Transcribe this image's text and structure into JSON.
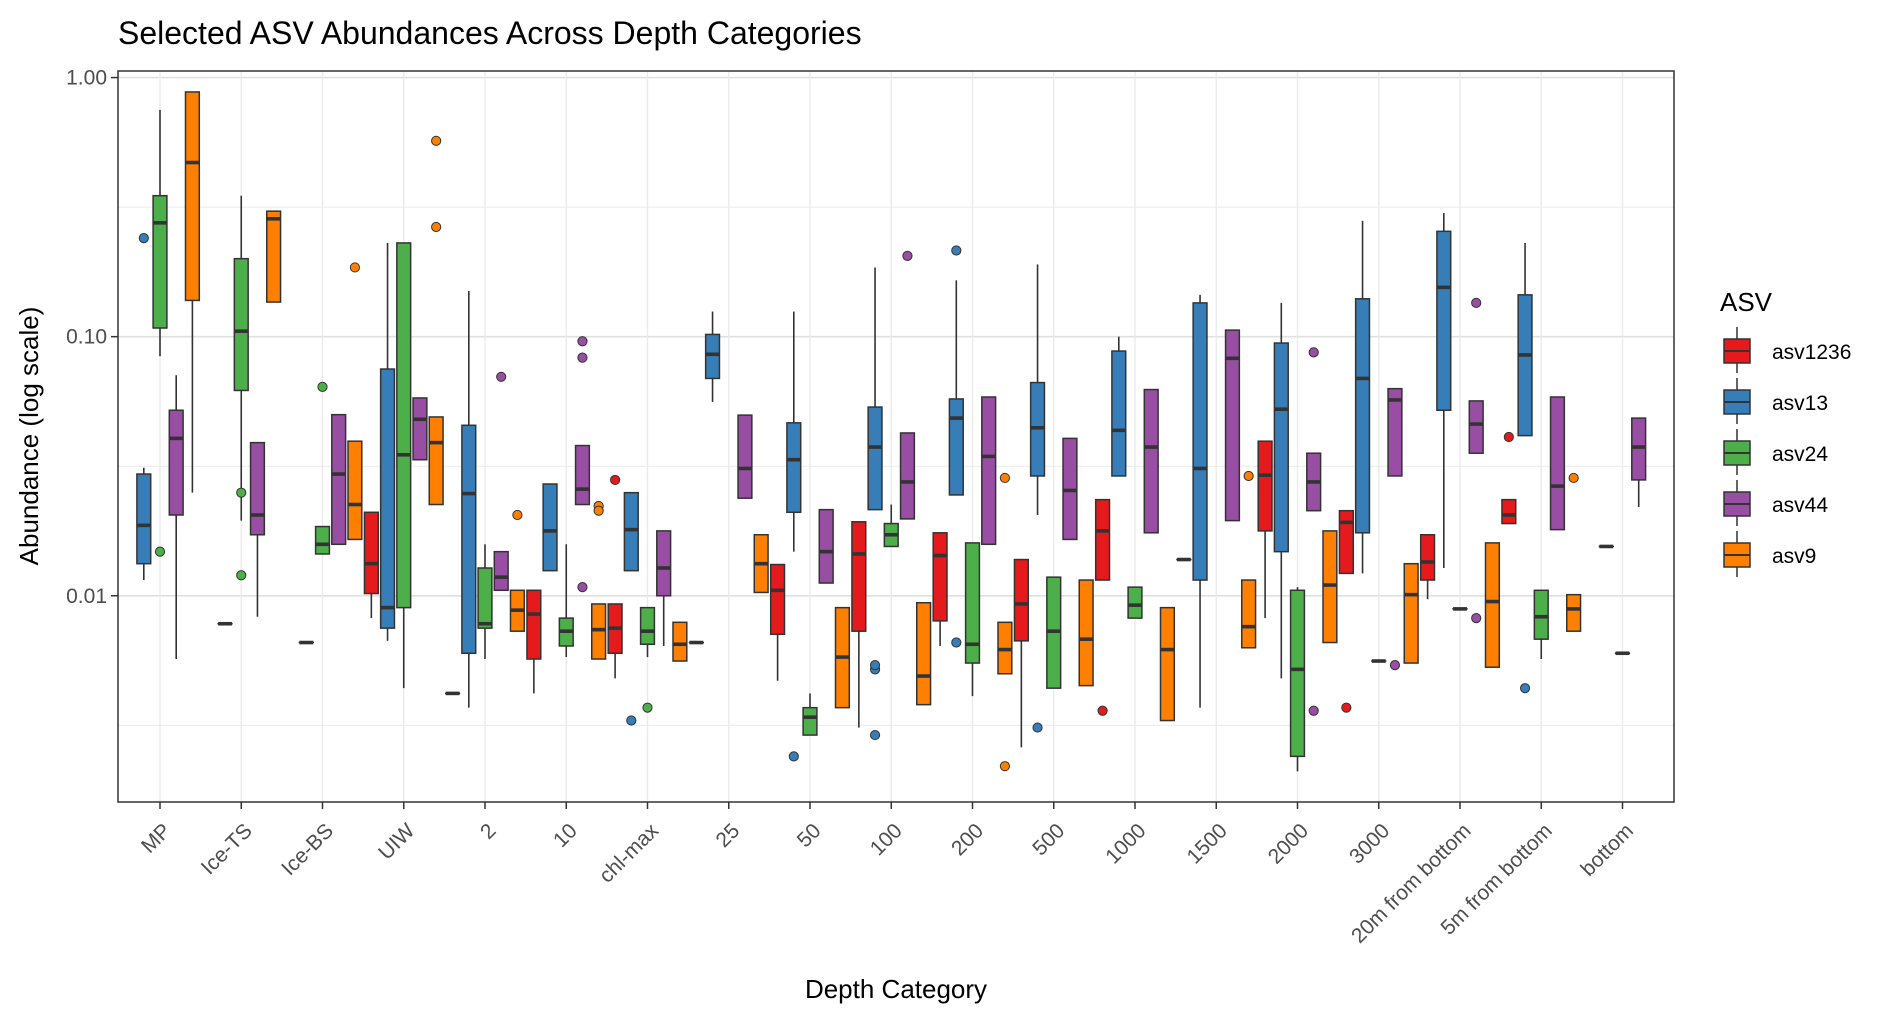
{
  "chart_data": {
    "type": "box",
    "title": "Selected ASV Abundances Across Depth Categories",
    "xlabel": "Depth Category",
    "ylabel": "Abundance (log scale)",
    "yscale": "log10",
    "ylim": [
      0.0016,
      1.06
    ],
    "yticks": [
      {
        "value": 1.0,
        "label": "1.00"
      },
      {
        "value": 0.1,
        "label": "0.10"
      },
      {
        "value": 0.01,
        "label": "0.01"
      }
    ],
    "grid": true,
    "legend_position": "right",
    "legend_title": "ASV",
    "categories": [
      "MP",
      "Ice-TS",
      "Ice-BS",
      "UIW",
      "2",
      "10",
      "chl-max",
      "25",
      "50",
      "100",
      "200",
      "500",
      "1000",
      "1500",
      "2000",
      "3000",
      "20m from bottom",
      "5m from bottom",
      "bottom"
    ],
    "series": [
      {
        "name": "asv1236",
        "color": "#E41A1C",
        "boxes": [
          null,
          null,
          null,
          {
            "q1": 0.0102,
            "median": 0.0133,
            "q3": 0.021,
            "lo": 0.0082,
            "hi": 0.021,
            "outliers": []
          },
          {
            "q1": 0.0042,
            "median": 0.0042,
            "q3": 0.0042,
            "lo": 0.0042,
            "hi": 0.0042,
            "outliers": []
          },
          {
            "q1": 0.0057,
            "median": 0.0085,
            "q3": 0.0105,
            "lo": 0.0042,
            "hi": 0.0105,
            "outliers": []
          },
          {
            "q1": 0.006,
            "median": 0.0075,
            "q3": 0.0093,
            "lo": 0.0048,
            "hi": 0.0093,
            "outliers": [
              0.028
            ]
          },
          {
            "q1": 0.0066,
            "median": 0.0066,
            "q3": 0.0066,
            "lo": 0.0066,
            "hi": 0.0066,
            "outliers": []
          },
          {
            "q1": 0.0071,
            "median": 0.0105,
            "q3": 0.0132,
            "lo": 0.0047,
            "hi": 0.0132,
            "outliers": []
          },
          {
            "q1": 0.0073,
            "median": 0.0145,
            "q3": 0.0193,
            "lo": 0.0031,
            "hi": 0.0193,
            "outliers": []
          },
          {
            "q1": 0.008,
            "median": 0.0143,
            "q3": 0.0175,
            "lo": 0.0064,
            "hi": 0.0175,
            "outliers": []
          },
          {
            "q1": 0.0067,
            "median": 0.0093,
            "q3": 0.0138,
            "lo": 0.0026,
            "hi": 0.0138,
            "outliers": []
          },
          {
            "q1": 0.0115,
            "median": 0.0178,
            "q3": 0.0235,
            "lo": 0.0115,
            "hi": 0.0235,
            "outliers": [
              0.0036
            ]
          },
          {
            "q1": 0.0138,
            "median": 0.0138,
            "q3": 0.0138,
            "lo": 0.0138,
            "hi": 0.0138,
            "outliers": []
          },
          {
            "q1": 0.0178,
            "median": 0.0292,
            "q3": 0.0395,
            "lo": 0.0082,
            "hi": 0.0395,
            "outliers": []
          },
          {
            "q1": 0.0122,
            "median": 0.0192,
            "q3": 0.0213,
            "lo": 0.0122,
            "hi": 0.0213,
            "outliers": [
              0.0037
            ]
          },
          {
            "q1": 0.0115,
            "median": 0.0135,
            "q3": 0.0172,
            "lo": 0.0097,
            "hi": 0.0172,
            "outliers": []
          },
          {
            "q1": 0.019,
            "median": 0.0205,
            "q3": 0.0235,
            "lo": 0.019,
            "hi": 0.0235,
            "outliers": [
              0.041
            ]
          },
          null
        ]
      },
      {
        "name": "asv13",
        "color": "#377EB8",
        "boxes": [
          {
            "q1": 0.0133,
            "median": 0.0187,
            "q3": 0.0295,
            "lo": 0.0115,
            "hi": 0.0312,
            "outliers": [
              0.24
            ]
          },
          {
            "q1": 0.0078,
            "median": 0.0078,
            "q3": 0.0078,
            "lo": 0.0078,
            "hi": 0.0078,
            "outliers": []
          },
          {
            "q1": 0.0066,
            "median": 0.0066,
            "q3": 0.0066,
            "lo": 0.0066,
            "hi": 0.0066,
            "outliers": []
          },
          {
            "q1": 0.0075,
            "median": 0.009,
            "q3": 0.075,
            "lo": 0.0067,
            "hi": 0.23,
            "outliers": []
          },
          {
            "q1": 0.006,
            "median": 0.0248,
            "q3": 0.0455,
            "lo": 0.0037,
            "hi": 0.15,
            "outliers": []
          },
          {
            "q1": 0.0125,
            "median": 0.0178,
            "q3": 0.027,
            "lo": 0.0125,
            "hi": 0.027,
            "outliers": []
          },
          {
            "q1": 0.0125,
            "median": 0.018,
            "q3": 0.025,
            "lo": 0.0125,
            "hi": 0.025,
            "outliers": [
              0.0033
            ]
          },
          {
            "q1": 0.069,
            "median": 0.0855,
            "q3": 0.102,
            "lo": 0.056,
            "hi": 0.125,
            "outliers": []
          },
          {
            "q1": 0.021,
            "median": 0.0335,
            "q3": 0.0465,
            "lo": 0.0148,
            "hi": 0.125,
            "outliers": [
              0.0024
            ]
          },
          {
            "q1": 0.0215,
            "median": 0.0375,
            "q3": 0.0535,
            "lo": 0.0215,
            "hi": 0.185,
            "outliers": [
              0.0052,
              0.0054,
              0.0029
            ]
          },
          {
            "q1": 0.0245,
            "median": 0.0485,
            "q3": 0.0575,
            "lo": 0.0245,
            "hi": 0.165,
            "outliers": [
              0.215,
              0.0066
            ]
          },
          {
            "q1": 0.029,
            "median": 0.0445,
            "q3": 0.0665,
            "lo": 0.0205,
            "hi": 0.19,
            "outliers": [
              0.0031
            ]
          },
          {
            "q1": 0.029,
            "median": 0.0435,
            "q3": 0.088,
            "lo": 0.029,
            "hi": 0.1,
            "outliers": []
          },
          {
            "q1": 0.0115,
            "median": 0.031,
            "q3": 0.135,
            "lo": 0.0037,
            "hi": 0.145,
            "outliers": []
          },
          {
            "q1": 0.0148,
            "median": 0.0525,
            "q3": 0.0945,
            "lo": 0.0048,
            "hi": 0.135,
            "outliers": []
          },
          {
            "q1": 0.0175,
            "median": 0.069,
            "q3": 0.14,
            "lo": 0.0122,
            "hi": 0.28,
            "outliers": []
          },
          {
            "q1": 0.052,
            "median": 0.155,
            "q3": 0.255,
            "lo": 0.0128,
            "hi": 0.3,
            "outliers": []
          },
          {
            "q1": 0.0415,
            "median": 0.085,
            "q3": 0.145,
            "lo": 0.0415,
            "hi": 0.23,
            "outliers": [
              0.0044
            ]
          },
          {
            "q1": 0.0155,
            "median": 0.0155,
            "q3": 0.0155,
            "lo": 0.0155,
            "hi": 0.0155,
            "outliers": []
          }
        ]
      },
      {
        "name": "asv24",
        "color": "#4DAF4A",
        "boxes": [
          {
            "q1": 0.108,
            "median": 0.275,
            "q3": 0.35,
            "lo": 0.084,
            "hi": 0.75,
            "outliers": [
              0.0148
            ]
          },
          {
            "q1": 0.062,
            "median": 0.105,
            "q3": 0.2,
            "lo": 0.0195,
            "hi": 0.35,
            "outliers": [
              0.025,
              0.012
            ]
          },
          {
            "q1": 0.0145,
            "median": 0.0158,
            "q3": 0.0185,
            "lo": 0.0145,
            "hi": 0.0185,
            "outliers": [
              0.064
            ]
          },
          {
            "q1": 0.009,
            "median": 0.035,
            "q3": 0.23,
            "lo": 0.0044,
            "hi": 0.23,
            "outliers": []
          },
          {
            "q1": 0.0075,
            "median": 0.0078,
            "q3": 0.0128,
            "lo": 0.0057,
            "hi": 0.0158,
            "outliers": []
          },
          {
            "q1": 0.0064,
            "median": 0.0073,
            "q3": 0.0082,
            "lo": 0.0058,
            "hi": 0.0158,
            "outliers": []
          },
          {
            "q1": 0.0065,
            "median": 0.0073,
            "q3": 0.009,
            "lo": 0.0058,
            "hi": 0.009,
            "outliers": [
              0.0037
            ]
          },
          null,
          {
            "q1": 0.0029,
            "median": 0.0034,
            "q3": 0.0037,
            "lo": 0.0029,
            "hi": 0.0042,
            "outliers": []
          },
          {
            "q1": 0.0155,
            "median": 0.0172,
            "q3": 0.019,
            "lo": 0.0155,
            "hi": 0.0225,
            "outliers": []
          },
          {
            "q1": 0.0055,
            "median": 0.0065,
            "q3": 0.016,
            "lo": 0.0041,
            "hi": 0.016,
            "outliers": []
          },
          {
            "q1": 0.0044,
            "median": 0.0073,
            "q3": 0.0118,
            "lo": 0.0044,
            "hi": 0.0118,
            "outliers": []
          },
          {
            "q1": 0.0082,
            "median": 0.0092,
            "q3": 0.0108,
            "lo": 0.0082,
            "hi": 0.0108,
            "outliers": []
          },
          null,
          {
            "q1": 0.0024,
            "median": 0.0052,
            "q3": 0.0105,
            "lo": 0.0021,
            "hi": 0.0108,
            "outliers": []
          },
          {
            "q1": 0.0056,
            "median": 0.0056,
            "q3": 0.0056,
            "lo": 0.0056,
            "hi": 0.0056,
            "outliers": []
          },
          {
            "q1": 0.0089,
            "median": 0.0089,
            "q3": 0.0089,
            "lo": 0.0089,
            "hi": 0.0089,
            "outliers": []
          },
          {
            "q1": 0.0068,
            "median": 0.0083,
            "q3": 0.0105,
            "lo": 0.0057,
            "hi": 0.0105,
            "outliers": []
          },
          {
            "q1": 0.006,
            "median": 0.006,
            "q3": 0.006,
            "lo": 0.006,
            "hi": 0.006,
            "outliers": []
          }
        ]
      },
      {
        "name": "asv44",
        "color": "#984EA3",
        "boxes": [
          {
            "q1": 0.0205,
            "median": 0.0405,
            "q3": 0.052,
            "lo": 0.0057,
            "hi": 0.071,
            "outliers": []
          },
          {
            "q1": 0.0172,
            "median": 0.0205,
            "q3": 0.039,
            "lo": 0.0083,
            "hi": 0.039,
            "outliers": []
          },
          {
            "q1": 0.0158,
            "median": 0.0295,
            "q3": 0.05,
            "lo": 0.0158,
            "hi": 0.05,
            "outliers": []
          },
          {
            "q1": 0.0335,
            "median": 0.048,
            "q3": 0.058,
            "lo": 0.0335,
            "hi": 0.058,
            "outliers": []
          },
          {
            "q1": 0.0105,
            "median": 0.0118,
            "q3": 0.0148,
            "lo": 0.0105,
            "hi": 0.0148,
            "outliers": [
              0.07
            ]
          },
          {
            "q1": 0.0225,
            "median": 0.0258,
            "q3": 0.038,
            "lo": 0.0225,
            "hi": 0.038,
            "outliers": [
              0.096,
              0.083,
              0.0108
            ]
          },
          {
            "q1": 0.01,
            "median": 0.0128,
            "q3": 0.0178,
            "lo": 0.0064,
            "hi": 0.0178,
            "outliers": []
          },
          {
            "q1": 0.0238,
            "median": 0.031,
            "q3": 0.0498,
            "lo": 0.0238,
            "hi": 0.0498,
            "outliers": []
          },
          {
            "q1": 0.0112,
            "median": 0.0148,
            "q3": 0.0215,
            "lo": 0.0112,
            "hi": 0.0215,
            "outliers": []
          },
          {
            "q1": 0.0198,
            "median": 0.0275,
            "q3": 0.0425,
            "lo": 0.0198,
            "hi": 0.0425,
            "outliers": [
              0.205
            ]
          },
          {
            "q1": 0.0158,
            "median": 0.0345,
            "q3": 0.0585,
            "lo": 0.0158,
            "hi": 0.0585,
            "outliers": []
          },
          {
            "q1": 0.0165,
            "median": 0.0255,
            "q3": 0.0405,
            "lo": 0.0165,
            "hi": 0.0405,
            "outliers": []
          },
          {
            "q1": 0.0175,
            "median": 0.0375,
            "q3": 0.0625,
            "lo": 0.0175,
            "hi": 0.0625,
            "outliers": []
          },
          {
            "q1": 0.0195,
            "median": 0.0825,
            "q3": 0.106,
            "lo": 0.0195,
            "hi": 0.106,
            "outliers": []
          },
          {
            "q1": 0.0213,
            "median": 0.0275,
            "q3": 0.0355,
            "lo": 0.0213,
            "hi": 0.0355,
            "outliers": [
              0.087,
              0.0036
            ]
          },
          {
            "q1": 0.029,
            "median": 0.057,
            "q3": 0.063,
            "lo": 0.029,
            "hi": 0.063,
            "outliers": [
              0.0054
            ]
          },
          {
            "q1": 0.0355,
            "median": 0.046,
            "q3": 0.0565,
            "lo": 0.0355,
            "hi": 0.0565,
            "outliers": [
              0.135,
              0.0082
            ]
          },
          {
            "q1": 0.018,
            "median": 0.0265,
            "q3": 0.0585,
            "lo": 0.018,
            "hi": 0.0585,
            "outliers": []
          },
          {
            "q1": 0.028,
            "median": 0.0375,
            "q3": 0.0485,
            "lo": 0.022,
            "hi": 0.0485,
            "outliers": []
          }
        ]
      },
      {
        "name": "asv9",
        "color": "#FF7F00",
        "boxes": [
          {
            "q1": 0.138,
            "median": 0.47,
            "q3": 0.88,
            "lo": 0.025,
            "hi": 0.88,
            "outliers": []
          },
          {
            "q1": 0.136,
            "median": 0.285,
            "q3": 0.305,
            "lo": 0.136,
            "hi": 0.305,
            "outliers": []
          },
          {
            "q1": 0.0165,
            "median": 0.0225,
            "q3": 0.0395,
            "lo": 0.0165,
            "hi": 0.0395,
            "outliers": [
              0.185
            ]
          },
          {
            "q1": 0.0225,
            "median": 0.039,
            "q3": 0.049,
            "lo": 0.0225,
            "hi": 0.049,
            "outliers": [
              0.57,
              0.265
            ]
          },
          {
            "q1": 0.0073,
            "median": 0.0088,
            "q3": 0.0105,
            "lo": 0.0073,
            "hi": 0.0105,
            "outliers": [
              0.0205
            ]
          },
          {
            "q1": 0.0057,
            "median": 0.0074,
            "q3": 0.0093,
            "lo": 0.0057,
            "hi": 0.0093,
            "outliers": [
              0.0222,
              0.0213
            ]
          },
          {
            "q1": 0.0056,
            "median": 0.0065,
            "q3": 0.0079,
            "lo": 0.0056,
            "hi": 0.0079,
            "outliers": []
          },
          {
            "q1": 0.0103,
            "median": 0.0133,
            "q3": 0.0172,
            "lo": 0.0103,
            "hi": 0.0172,
            "outliers": []
          },
          {
            "q1": 0.0037,
            "median": 0.0058,
            "q3": 0.009,
            "lo": 0.0037,
            "hi": 0.009,
            "outliers": []
          },
          {
            "q1": 0.0038,
            "median": 0.0049,
            "q3": 0.0094,
            "lo": 0.0038,
            "hi": 0.0094,
            "outliers": []
          },
          {
            "q1": 0.005,
            "median": 0.0062,
            "q3": 0.0079,
            "lo": 0.005,
            "hi": 0.0079,
            "outliers": [
              0.0285,
              0.0022
            ]
          },
          {
            "q1": 0.0045,
            "median": 0.0068,
            "q3": 0.0115,
            "lo": 0.0045,
            "hi": 0.0115,
            "outliers": []
          },
          {
            "q1": 0.0033,
            "median": 0.0062,
            "q3": 0.009,
            "lo": 0.0033,
            "hi": 0.009,
            "outliers": []
          },
          {
            "q1": 0.0063,
            "median": 0.0076,
            "q3": 0.0115,
            "lo": 0.0063,
            "hi": 0.0115,
            "outliers": [
              0.029
            ]
          },
          {
            "q1": 0.0066,
            "median": 0.011,
            "q3": 0.0178,
            "lo": 0.0066,
            "hi": 0.0178,
            "outliers": []
          },
          {
            "q1": 0.0055,
            "median": 0.0101,
            "q3": 0.0133,
            "lo": 0.0055,
            "hi": 0.0133,
            "outliers": []
          },
          {
            "q1": 0.0053,
            "median": 0.0095,
            "q3": 0.016,
            "lo": 0.0053,
            "hi": 0.016,
            "outliers": []
          },
          {
            "q1": 0.0073,
            "median": 0.0089,
            "q3": 0.0101,
            "lo": 0.0073,
            "hi": 0.0101,
            "outliers": [
              0.0285
            ]
          },
          null
        ]
      }
    ]
  }
}
